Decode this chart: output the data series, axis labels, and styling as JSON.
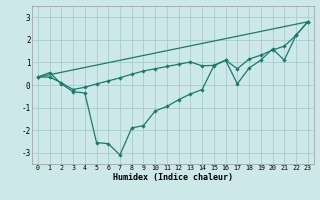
{
  "xlabel": "Humidex (Indice chaleur)",
  "background_color": "#cce8e8",
  "line_color": "#1a7a6e",
  "grid_color": "#aacccc",
  "xmin": -0.5,
  "xmax": 23.5,
  "ymin": -3.5,
  "ymax": 3.5,
  "yticks": [
    -3,
    -2,
    -1,
    0,
    1,
    2,
    3
  ],
  "xticks": [
    0,
    1,
    2,
    3,
    4,
    5,
    6,
    7,
    8,
    9,
    10,
    11,
    12,
    13,
    14,
    15,
    16,
    17,
    18,
    19,
    20,
    21,
    22,
    23
  ],
  "line1_x": [
    0,
    1,
    2,
    3,
    4,
    5,
    6,
    7,
    8,
    9,
    10,
    11,
    12,
    13,
    14,
    15,
    16,
    17,
    18,
    19,
    20,
    21,
    22,
    23
  ],
  "line1_y": [
    0.35,
    0.55,
    0.05,
    -0.3,
    -0.35,
    -2.55,
    -2.6,
    -3.1,
    -1.9,
    -1.8,
    -1.15,
    -0.95,
    -0.65,
    -0.4,
    -0.2,
    0.85,
    1.1,
    0.05,
    0.75,
    1.1,
    1.6,
    1.1,
    2.2,
    2.8
  ],
  "line2_x": [
    0,
    23
  ],
  "line2_y": [
    0.35,
    2.8
  ],
  "line3_x": [
    0,
    1,
    2,
    3,
    4,
    5,
    6,
    7,
    8,
    9,
    10,
    11,
    12,
    13,
    14,
    15,
    16,
    17,
    18,
    19,
    20,
    21,
    22,
    23
  ],
  "line3_y": [
    0.35,
    0.35,
    0.1,
    -0.2,
    -0.1,
    0.05,
    0.18,
    0.32,
    0.48,
    0.62,
    0.72,
    0.82,
    0.92,
    1.02,
    0.85,
    0.87,
    1.1,
    0.72,
    1.15,
    1.32,
    1.55,
    1.72,
    2.2,
    2.8
  ]
}
